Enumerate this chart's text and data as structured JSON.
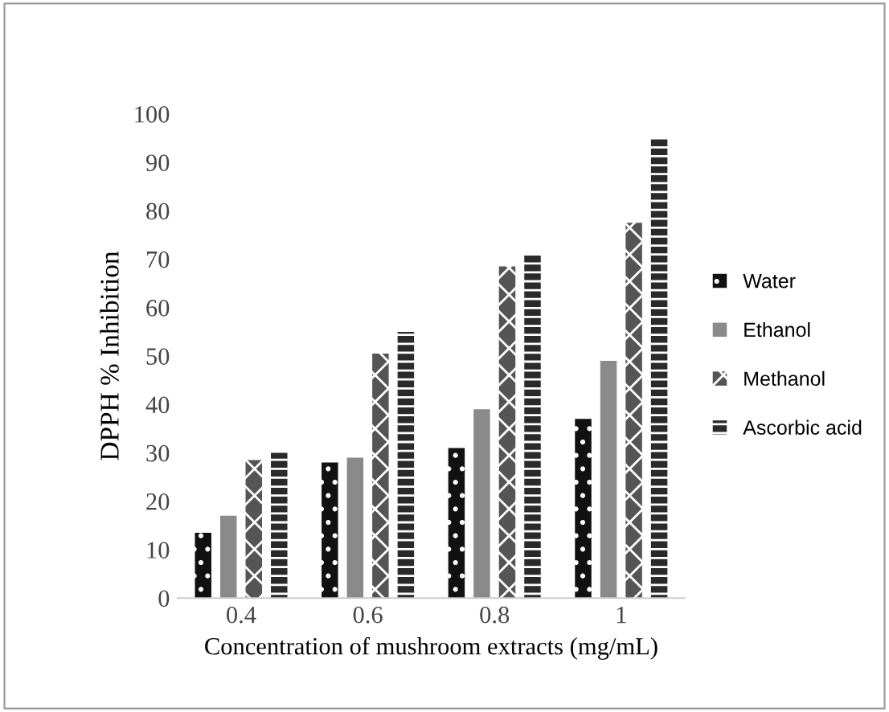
{
  "chart_data": {
    "type": "bar",
    "xlabel": "Concentration of mushroom extracts (mg/mL)",
    "ylabel": "DPPH % Inhibition",
    "categories": [
      "0.4",
      "0.6",
      "0.8",
      "1"
    ],
    "series": [
      {
        "name": "Water",
        "color": "#111111",
        "values": [
          13.5,
          28,
          31,
          37
        ]
      },
      {
        "name": "Ethanol",
        "color": "#8a8a8a",
        "values": [
          17,
          29,
          39,
          49
        ]
      },
      {
        "name": "Methanol",
        "color": "#555555",
        "values": [
          28.5,
          50.5,
          68.5,
          77.5
        ]
      },
      {
        "name": "Ascorbic acid",
        "color": "#2a2a2a",
        "values": [
          30,
          55,
          71,
          95
        ]
      }
    ],
    "ylim": [
      0,
      100
    ],
    "yticks": [
      0,
      10,
      20,
      30,
      40,
      50,
      60,
      70,
      80,
      90,
      100
    ],
    "grid": false,
    "legend": "right"
  }
}
